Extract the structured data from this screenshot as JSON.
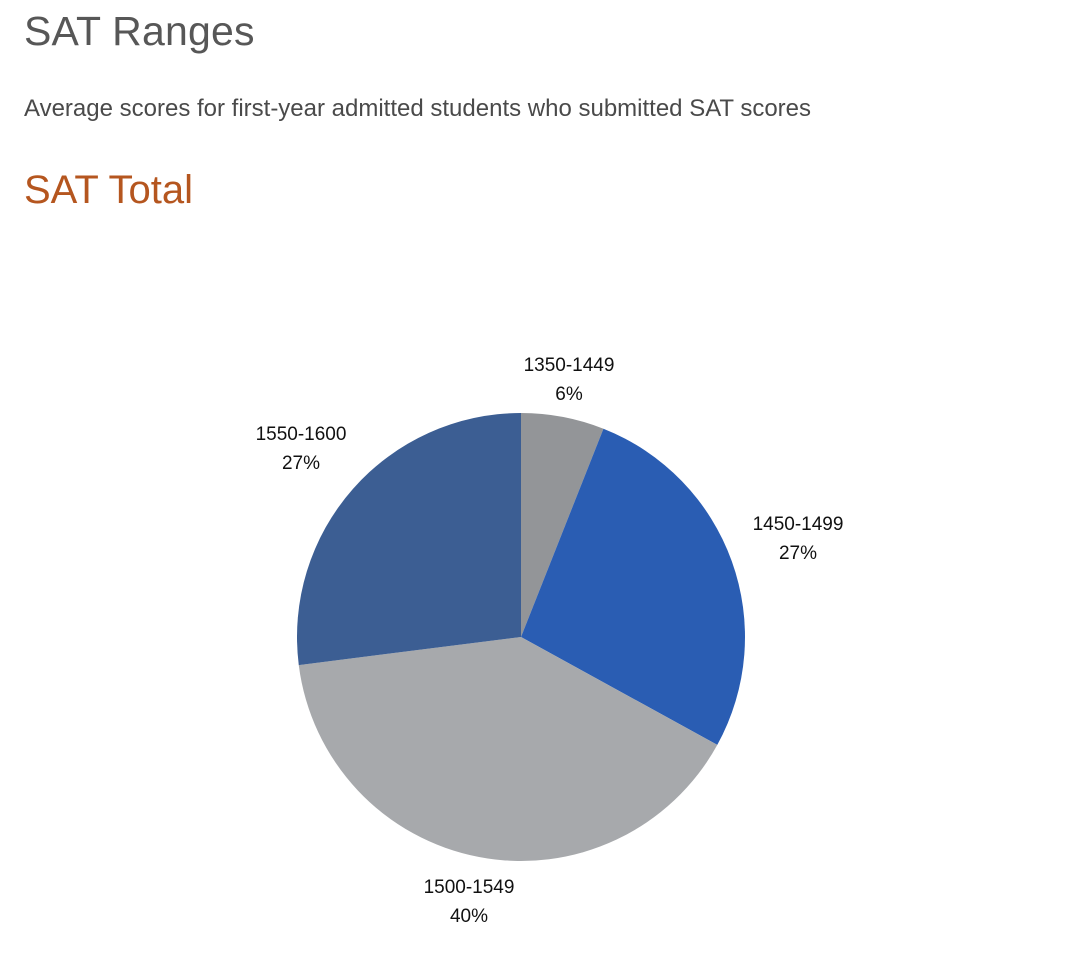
{
  "page": {
    "title": "SAT Ranges",
    "subtitle": "Average scores for first-year admitted students who submitted SAT scores"
  },
  "section": {
    "title": "SAT Total"
  },
  "chart_data": {
    "type": "pie",
    "start_angle_deg": 0,
    "direction": "clockwise",
    "slices": [
      {
        "label": "1350-1449",
        "value": 6,
        "value_label": "6%",
        "color": "#939598"
      },
      {
        "label": "1450-1499",
        "value": 27,
        "value_label": "27%",
        "color": "#2a5db3"
      },
      {
        "label": "1500-1549",
        "value": 40,
        "value_label": "40%",
        "color": "#a7a9ac"
      },
      {
        "label": "1550-1600",
        "value": 27,
        "value_label": "27%",
        "color": "#3c5e93"
      }
    ]
  }
}
